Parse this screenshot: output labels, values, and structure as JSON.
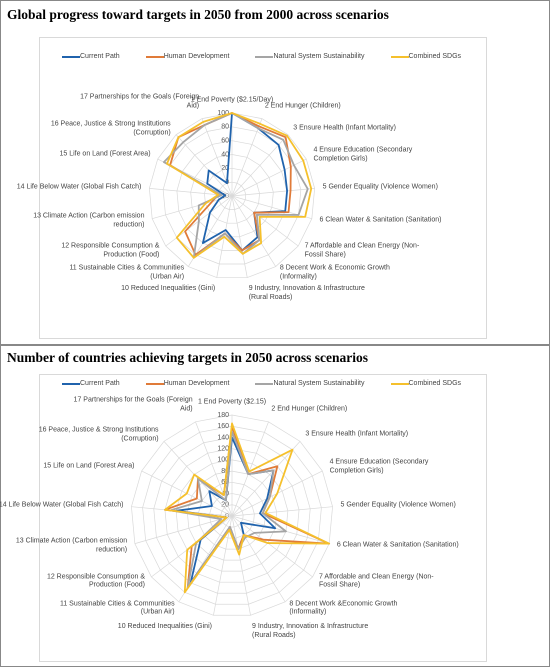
{
  "chart_data": [
    {
      "type": "radar",
      "title": "Global progress toward targets in 2050 from 2000 across scenarios",
      "categories": [
        "1 End Poverty ($2.15/Day)",
        "2 End  Hunger (Children)",
        "3 Ensure Health (Infant Mortality)",
        "4 Ensure Education (Secondary Completion Girls)",
        "5 Gender Equality (Violence Women)",
        "6 Clean Water & Sanitation (Sanitation)",
        "7 Affordable and Clean Energy (Non-Fossil Share)",
        "8 Decent Work & Economic Growth (Informality)",
        "9 Industry, Innovation & Infrastructure (Rural Roads)",
        "10 Reduced Inequalities (Gini)",
        "11 Sustainable Cities & Communities (Urban Air)",
        "12 Responsible Consumption & Production (Food)",
        "13 Climate Action (Carbon emission reduction)",
        "14 Life Below Water (Global Fish Catch)",
        "15 Life on Land (Forest Area)",
        "16 Peace, Justice & Strong Institutions (Corruption)",
        "17 Partnerships for the Goals (Foreign Aid)"
      ],
      "series": [
        {
          "name": "Current Path",
          "color": "#2063ad",
          "values": [
            100,
            85,
            80,
            65,
            60,
            60,
            20,
            50,
            60,
            30,
            60,
            20,
            0,
            -10,
            20,
            30,
            0
          ]
        },
        {
          "name": "Human Development",
          "color": "#e07b39",
          "values": [
            100,
            88,
            95,
            75,
            65,
            65,
            20,
            55,
            60,
            35,
            80,
            65,
            10,
            0,
            80,
            95,
            90
          ]
        },
        {
          "name": "Natural System Sustainability",
          "color": "#a5a5a5",
          "values": [
            100,
            85,
            90,
            80,
            90,
            80,
            25,
            55,
            65,
            35,
            85,
            40,
            30,
            -5,
            90,
            85,
            90
          ]
        },
        {
          "name": "Combined SDGs",
          "color": "#f5c02c",
          "values": [
            100,
            92,
            98,
            95,
            95,
            90,
            30,
            60,
            65,
            40,
            85,
            80,
            20,
            0,
            85,
            95,
            95
          ]
        }
      ],
      "ylim": [
        -20,
        100
      ],
      "yticks": [
        -20,
        0,
        20,
        40,
        60,
        80,
        100
      ],
      "grid": true,
      "legend": "top"
    },
    {
      "type": "radar",
      "title": "Number of countries achieving targets in 2050 across scenarios",
      "categories": [
        "1 End Poverty ($2.15)",
        "2 End  Hunger (Children)",
        "3 Ensure Health (Infant Mortality)",
        "4 Ensure Education (Secondary Completion Girls)",
        "5 Gender Equality (Violence Women)",
        "6 Clean Water & Sanitation (Sanitation)",
        "7 Affordable and Clean Energy (Non-Fossil Share)",
        "8 Decent Work &Economic Growth (Informality)",
        "9 Industry, Innovation & Infrastructure (Rural Roads)",
        "10 Reduced Inequalities (Gini)",
        "11 Sustainable Cities & Communities (Urban Air)",
        "12 Responsible Consumption & Production (Food)",
        "13 Climate Action (Carbon emission reduction)",
        "14 Life Below Water (Global Fish Catch)",
        "15 Life on Land (Forest Area)",
        "16 Peace, Justice & Strong Institutions (Corruption)",
        "17 Partnerships for the Goals (Foreign Aid)"
      ],
      "series": [
        {
          "name": "Current Path",
          "color": "#2063ad",
          "values": [
            140,
            80,
            110,
            70,
            50,
            80,
            20,
            40,
            60,
            20,
            140,
            70,
            10,
            100,
            40,
            60,
            30
          ]
        },
        {
          "name": "Human Development",
          "color": "#e07b39",
          "values": [
            160,
            80,
            120,
            75,
            55,
            180,
            70,
            40,
            60,
            20,
            150,
            90,
            10,
            120,
            70,
            90,
            40
          ]
        },
        {
          "name": "Natural System Sustainability",
          "color": "#a5a5a5",
          "values": [
            150,
            80,
            110,
            75,
            55,
            100,
            50,
            45,
            60,
            20,
            150,
            80,
            20,
            110,
            60,
            90,
            30
          ]
        },
        {
          "name": "Combined SDGs",
          "color": "#f5c02c",
          "values": [
            165,
            85,
            160,
            90,
            60,
            180,
            80,
            40,
            70,
            25,
            160,
            100,
            10,
            120,
            90,
            100,
            40
          ]
        }
      ],
      "ylim": [
        0,
        180
      ],
      "yticks": [
        0,
        20,
        40,
        60,
        80,
        100,
        120,
        140,
        160,
        180
      ],
      "grid": true,
      "legend": "top"
    }
  ]
}
